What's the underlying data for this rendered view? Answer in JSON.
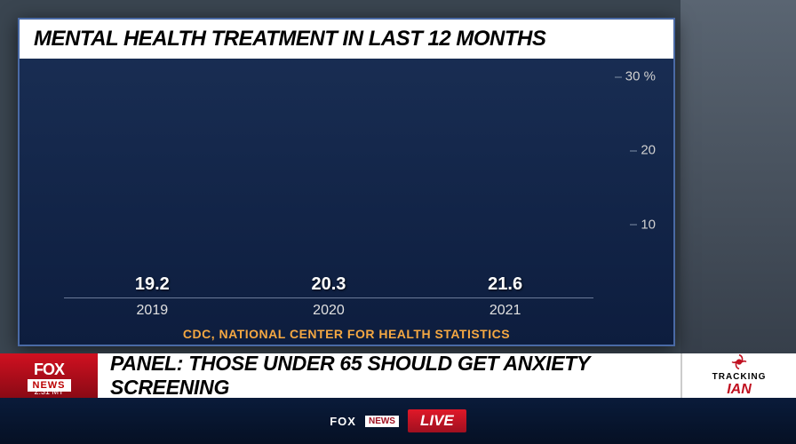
{
  "chart": {
    "title": "MENTAL HEALTH TREATMENT IN LAST 12 MONTHS",
    "type": "bar",
    "categories": [
      "2019",
      "2020",
      "2021"
    ],
    "values": [
      19.2,
      20.3,
      21.6
    ],
    "bar_color": "#f5e042",
    "background_color": "#0d1d3e",
    "title_bg": "#ffffff",
    "title_color": "#000000",
    "title_fontsize": 24,
    "value_label_color": "#ffffff",
    "value_label_fontsize": 20,
    "x_label_color": "#e0e0e0",
    "x_label_fontsize": 16,
    "y_label_color": "#d0d0d0",
    "y_label_fontsize": 15,
    "ylim": [
      0,
      30
    ],
    "ytick_step": 10,
    "yticks": [
      "10",
      "20",
      "30 %"
    ],
    "bar_width": 0.92,
    "source": "CDC, NATIONAL CENTER FOR HEALTH STATISTICS",
    "source_color": "#f5a842"
  },
  "lower_third": {
    "network_fox": "FOX",
    "network_news": "NEWS",
    "time": "2:31 MT",
    "headline": "PANEL: THOSE UNDER 65 SHOULD GET ANXIETY SCREENING",
    "tracker_label": "TRACKING",
    "tracker_name": "IAN"
  },
  "ticker": {
    "fox": "FOX",
    "news": "NEWS",
    "live": "LIVE"
  },
  "colors": {
    "fox_red": "#c01020",
    "ticker_bg": "#0a1b3a",
    "headline_bg": "#ffffff"
  }
}
